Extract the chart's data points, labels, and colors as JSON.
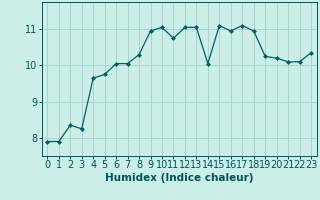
{
  "xlabel": "Humidex (Indice chaleur)",
  "x": [
    0,
    1,
    2,
    3,
    4,
    5,
    6,
    7,
    8,
    9,
    10,
    11,
    12,
    13,
    14,
    15,
    16,
    17,
    18,
    19,
    20,
    21,
    22,
    23
  ],
  "y": [
    7.9,
    7.9,
    8.35,
    8.25,
    9.65,
    9.75,
    10.05,
    10.05,
    10.3,
    10.95,
    11.05,
    10.75,
    11.05,
    11.05,
    10.05,
    11.1,
    10.95,
    11.1,
    10.95,
    10.25,
    10.2,
    10.1,
    10.1,
    10.35
  ],
  "line_color": "#006060",
  "marker": "D",
  "marker_size": 2.0,
  "bg_color": "#cceee8",
  "grid_color": "#aad4ce",
  "tick_color": "#005555",
  "label_color": "#005555",
  "ylim": [
    7.5,
    11.75
  ],
  "yticks": [
    8,
    9,
    10,
    11
  ],
  "xticks": [
    0,
    1,
    2,
    3,
    4,
    5,
    6,
    7,
    8,
    9,
    10,
    11,
    12,
    13,
    14,
    15,
    16,
    17,
    18,
    19,
    20,
    21,
    22,
    23
  ],
  "xlabel_fontsize": 7.5,
  "tick_fontsize": 7.0,
  "linewidth": 0.9
}
